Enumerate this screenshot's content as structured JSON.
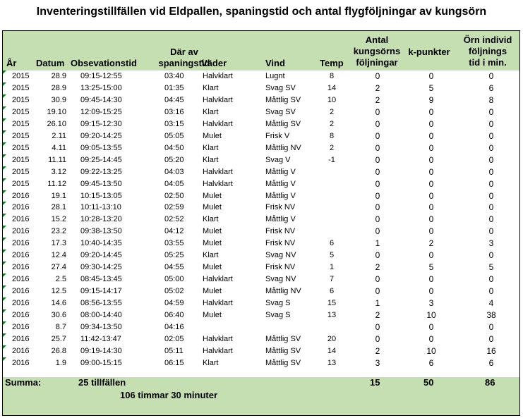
{
  "title": "Inventeringstillfällen vid Eldpallen, spaningstid och antal flygföljningar av kungsörn",
  "headers": {
    "ar": "År",
    "datum": "Datum",
    "obs": "Obsevationstid",
    "dar1": "Där av",
    "dar2": "spaningstid",
    "vader": "Väder",
    "vind": "Vind",
    "temp": "Temp",
    "antal1": "Antal",
    "antal2": "kungsörns",
    "antal3": "följningar",
    "kp": "k-punkter",
    "orn1": "Örn individ",
    "orn2": "följnings",
    "orn3": "tid i min."
  },
  "rows": [
    {
      "ar": "2015",
      "datum": "28.9",
      "obs": "09:15-12:55",
      "spaning": "03:40",
      "vader": "Halvklart",
      "vind": "Lugnt",
      "temp": "8",
      "antal": "0",
      "kp": "0",
      "orn": "0"
    },
    {
      "ar": "2015",
      "datum": "28.9",
      "obs": "13:25-15:00",
      "spaning": "01:35",
      "vader": "Klart",
      "vind": "Svag SV",
      "temp": "14",
      "antal": "2",
      "kp": "5",
      "orn": "6"
    },
    {
      "ar": "2015",
      "datum": "30.9",
      "obs": "09:45-14:30",
      "spaning": "04:45",
      "vader": "Halvklart",
      "vind": "Måttlig SV",
      "temp": "10",
      "antal": "2",
      "kp": "9",
      "orn": "8"
    },
    {
      "ar": "2015",
      "datum": "19.10",
      "obs": "12:09-15:25",
      "spaning": "03:16",
      "vader": "Klart",
      "vind": "Svag SV",
      "temp": "2",
      "antal": "0",
      "kp": "0",
      "orn": "0"
    },
    {
      "ar": "2015",
      "datum": "26.10",
      "obs": "09:15-12:30",
      "spaning": "03:15",
      "vader": "Halvklart",
      "vind": "Måttlig SV",
      "temp": "2",
      "antal": "0",
      "kp": "0",
      "orn": "0"
    },
    {
      "ar": "2015",
      "datum": "2.11",
      "obs": "09:20-14:25",
      "spaning": "05:05",
      "vader": "Mulet",
      "vind": "Frisk V",
      "temp": "8",
      "antal": "0",
      "kp": "0",
      "orn": "0"
    },
    {
      "ar": "2015",
      "datum": "4.11",
      "obs": "09:05-13:55",
      "spaning": "04:50",
      "vader": "Klart",
      "vind": "Måttlig NV",
      "temp": "2",
      "antal": "0",
      "kp": "0",
      "orn": "0"
    },
    {
      "ar": "2015",
      "datum": "11.11",
      "obs": "09:25-14:45",
      "spaning": "05:20",
      "vader": "Klart",
      "vind": "Svag V",
      "temp": "-1",
      "antal": "0",
      "kp": "0",
      "orn": "0"
    },
    {
      "ar": "2015",
      "datum": "3.12",
      "obs": "09:22-13:25",
      "spaning": "04:03",
      "vader": "Halvklart",
      "vind": "Måttlig V",
      "temp": "",
      "antal": "0",
      "kp": "0",
      "orn": "0"
    },
    {
      "ar": "2015",
      "datum": "11.12",
      "obs": "09:45-13:50",
      "spaning": "04:05",
      "vader": "Halvklart",
      "vind": "Måttlig V",
      "temp": "",
      "antal": "0",
      "kp": "0",
      "orn": "0"
    },
    {
      "ar": "2016",
      "datum": "19.1",
      "obs": "10:15-13:05",
      "spaning": "02:50",
      "vader": "Mulet",
      "vind": "Måttlig V",
      "temp": "",
      "antal": "0",
      "kp": "0",
      "orn": "0"
    },
    {
      "ar": "2016",
      "datum": "28.1",
      "obs": "10:11-13:10",
      "spaning": "02:59",
      "vader": "Mulet",
      "vind": "Frisk NV",
      "temp": "",
      "antal": "0",
      "kp": "0",
      "orn": "0"
    },
    {
      "ar": "2016",
      "datum": "15.2",
      "obs": "10:28-13:20",
      "spaning": "02:52",
      "vader": "Klart",
      "vind": "Måttlig V",
      "temp": "",
      "antal": "0",
      "kp": "0",
      "orn": "0"
    },
    {
      "ar": "2016",
      "datum": "23.2",
      "obs": "09:38-13:50",
      "spaning": "04:12",
      "vader": "Mulet",
      "vind": "Frisk NV",
      "temp": "",
      "antal": "0",
      "kp": "0",
      "orn": "0"
    },
    {
      "ar": "2016",
      "datum": "17.3",
      "obs": "10:40-14:35",
      "spaning": "03:55",
      "vader": "Mulet",
      "vind": "Frisk NV",
      "temp": "6",
      "antal": "1",
      "kp": "2",
      "orn": "3"
    },
    {
      "ar": "2016",
      "datum": "12.4",
      "obs": "09:20-14:45",
      "spaning": "05:25",
      "vader": "Klart",
      "vind": "Svag NV",
      "temp": "5",
      "antal": "0",
      "kp": "0",
      "orn": "0"
    },
    {
      "ar": "2016",
      "datum": "27.4",
      "obs": "09:30-14:25",
      "spaning": "04:55",
      "vader": "Mulet",
      "vind": "Frisk NV",
      "temp": "1",
      "antal": "2",
      "kp": "5",
      "orn": "5"
    },
    {
      "ar": "2016",
      "datum": "2.5",
      "obs": "08:45-13:45",
      "spaning": "05:00",
      "vader": "Halvklart",
      "vind": "Svag NV",
      "temp": "7",
      "antal": "0",
      "kp": "0",
      "orn": "0"
    },
    {
      "ar": "2016",
      "datum": "12.5",
      "obs": "09:15-14:17",
      "spaning": "05:02",
      "vader": "Mulet",
      "vind": "Måttlig NV",
      "temp": "6",
      "antal": "0",
      "kp": "0",
      "orn": "0"
    },
    {
      "ar": "2016",
      "datum": "14.6",
      "obs": "08:56-13:55",
      "spaning": "04:59",
      "vader": "Halvklart",
      "vind": "Svag S",
      "temp": "15",
      "antal": "1",
      "kp": "3",
      "orn": "4"
    },
    {
      "ar": "2016",
      "datum": "30.6",
      "obs": "08:00-14:40",
      "spaning": "06:40",
      "vader": "Mulet",
      "vind": "Svag S",
      "temp": "13",
      "antal": "2",
      "kp": "10",
      "orn": "38"
    },
    {
      "ar": "2016",
      "datum": "8.7",
      "obs": "09:34-13:50",
      "spaning": "04:16",
      "vader": "",
      "vind": "",
      "temp": "",
      "antal": "0",
      "kp": "0",
      "orn": "0"
    },
    {
      "ar": "2016",
      "datum": "25.7",
      "obs": "11:42-13:47",
      "spaning": "02:05",
      "vader": "Halvklart",
      "vind": "Måttlig SV",
      "temp": "20",
      "antal": "0",
      "kp": "0",
      "orn": "0"
    },
    {
      "ar": "2016",
      "datum": "26.8",
      "obs": "09:19-14:30",
      "spaning": "05:11",
      "vader": "Halvklart",
      "vind": "Måttlig SV",
      "temp": "14",
      "antal": "2",
      "kp": "10",
      "orn": "16"
    },
    {
      "ar": "2016",
      "datum": "1.9",
      "obs": "09:00-15:15",
      "spaning": "06:15",
      "vader": "Klart",
      "vind": "Måttlig SV",
      "temp": "13",
      "antal": "3",
      "kp": "6",
      "orn": "6"
    }
  ],
  "footer": {
    "summa": "Summa:",
    "tillfallen": "25 tillfällen",
    "tid": "106 timmar 30 minuter",
    "antal": "15",
    "kp": "50",
    "orn": "86"
  },
  "colors": {
    "header_bg": "#c5dfb3",
    "marker": "#1a7a2b"
  }
}
